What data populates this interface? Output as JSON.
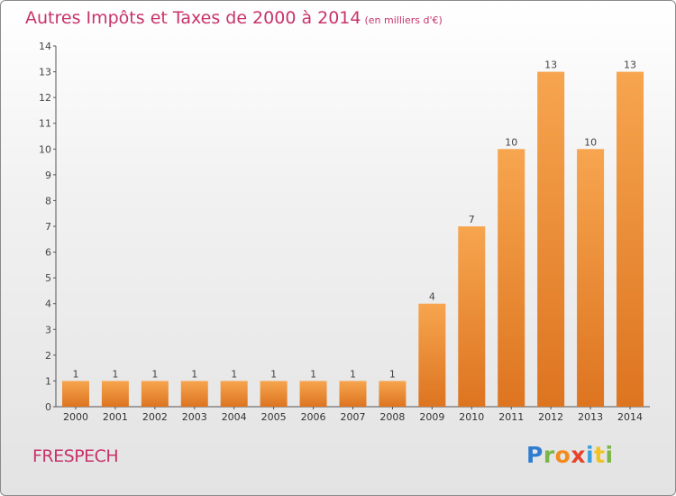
{
  "header": {
    "title": "Autres Impôts et Taxes de 2000 à 2014",
    "unit": "(en milliers d'€)"
  },
  "footer": {
    "town": "FRESPECH",
    "logo": "Proxiti"
  },
  "colors": {
    "title": "#c8336b",
    "bar_light": "#f7a54f",
    "bar_dark": "#dd7420",
    "axis": "#555555"
  },
  "chart_data": {
    "type": "bar",
    "title": "Autres Impôts et Taxes de 2000 à 2014",
    "subtitle": "(en milliers d'€)",
    "categories": [
      "2000",
      "2001",
      "2002",
      "2003",
      "2004",
      "2005",
      "2006",
      "2007",
      "2008",
      "2009",
      "2010",
      "2011",
      "2012",
      "2013",
      "2014"
    ],
    "values": [
      1,
      1,
      1,
      1,
      1,
      1,
      1,
      1,
      1,
      4,
      7,
      10,
      13,
      10,
      13
    ],
    "data_labels": [
      "1",
      "1",
      "1",
      "1",
      "1",
      "1",
      "1",
      "1",
      "1",
      "4",
      "7",
      "10",
      "13",
      "10",
      "13"
    ],
    "yticks": [
      0,
      1,
      2,
      3,
      4,
      5,
      6,
      7,
      8,
      9,
      10,
      11,
      12,
      13,
      14
    ],
    "ylim": [
      0,
      14
    ],
    "xlabel": "",
    "ylabel": "",
    "grid": false,
    "legend": "none"
  }
}
